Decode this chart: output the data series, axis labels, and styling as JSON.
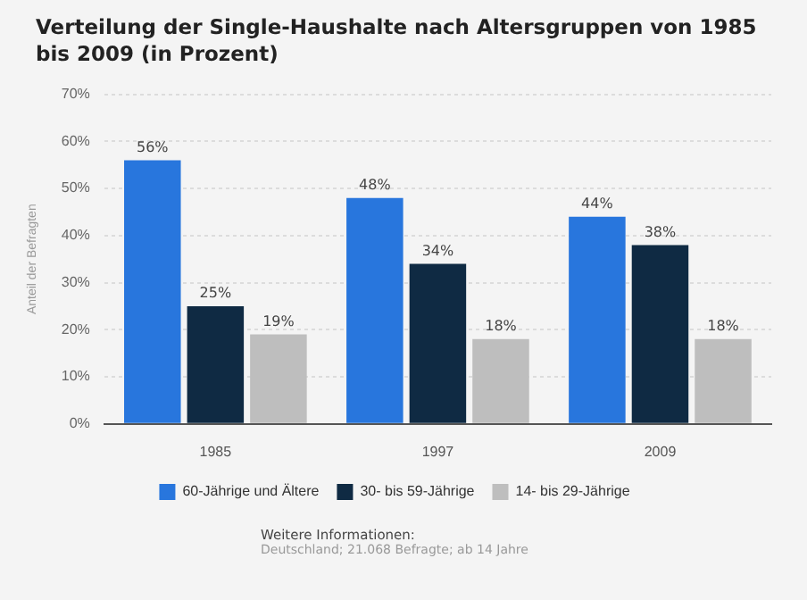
{
  "chart_data": {
    "type": "bar",
    "title": "Verteilung der Single-Haushalte nach Altersgruppen von 1985 bis 2009 (in Prozent)",
    "ylabel": "Anteil der Befragten",
    "categories": [
      "1985",
      "1997",
      "2009"
    ],
    "series": [
      {
        "name": "60-Jährige und Ältere",
        "color": "#2876dd",
        "values": [
          56,
          48,
          44
        ],
        "value_labels": [
          "56%",
          "48%",
          "44%"
        ]
      },
      {
        "name": "30- bis 59-Jährige",
        "color": "#0f2a43",
        "values": [
          25,
          34,
          38
        ],
        "value_labels": [
          "25%",
          "34%",
          "38%"
        ]
      },
      {
        "name": "14- bis 29-Jährige",
        "color": "#bebebe",
        "values": [
          19,
          18,
          18
        ],
        "value_labels": [
          "19%",
          "18%",
          "18%"
        ]
      }
    ],
    "ylim": [
      0,
      70
    ],
    "yticks": [
      {
        "value": 0,
        "label": "0%"
      },
      {
        "value": 10,
        "label": "10%"
      },
      {
        "value": 20,
        "label": "20%"
      },
      {
        "value": 30,
        "label": "30%"
      },
      {
        "value": 40,
        "label": "40%"
      },
      {
        "value": 50,
        "label": "50%"
      },
      {
        "value": 60,
        "label": "60%"
      },
      {
        "value": 70,
        "label": "70%"
      }
    ],
    "grid": "y",
    "legend": "bottom",
    "annotations": [
      "Weitere Informationen:",
      "Deutschland; 21.068 Befragte; ab 14 Jahre"
    ]
  }
}
